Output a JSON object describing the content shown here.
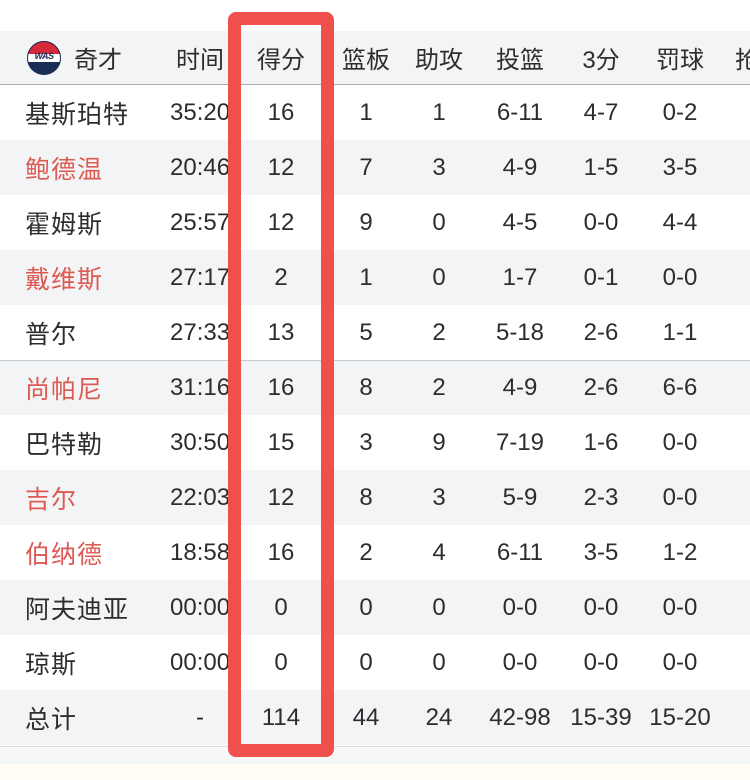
{
  "team": {
    "name": "奇才",
    "logo_text": "WAS",
    "logo_colors": {
      "top": "#d6293a",
      "middle": "#ffffff",
      "bottom": "#1b2f56"
    }
  },
  "header": {
    "time": "时间",
    "points": "得分",
    "rebounds": "篮板",
    "assists": "助攻",
    "field_goals": "投篮",
    "three_pointers": "3分",
    "free_throws": "罚球",
    "steals": "抢断"
  },
  "highlight": {
    "column": "得分",
    "color": "#f0504b"
  },
  "colors": {
    "red_player_name": "#dc5a52",
    "header_bg": "#f3f4f5",
    "zebra_row_bg": "#f3f4f6"
  },
  "rows": [
    {
      "name": "基斯珀特",
      "red": false,
      "time": "35:20",
      "pts": "16",
      "reb": "1",
      "ast": "1",
      "fg": "6-11",
      "tp": "4-7",
      "ft": "0-2",
      "stl": ""
    },
    {
      "name": "鲍德温",
      "red": true,
      "time": "20:46",
      "pts": "12",
      "reb": "7",
      "ast": "3",
      "fg": "4-9",
      "tp": "1-5",
      "ft": "3-5",
      "stl": ""
    },
    {
      "name": "霍姆斯",
      "red": false,
      "time": "25:57",
      "pts": "12",
      "reb": "9",
      "ast": "0",
      "fg": "4-5",
      "tp": "0-0",
      "ft": "4-4",
      "stl": ""
    },
    {
      "name": "戴维斯",
      "red": true,
      "time": "27:17",
      "pts": "2",
      "reb": "1",
      "ast": "0",
      "fg": "1-7",
      "tp": "0-1",
      "ft": "0-0",
      "stl": ""
    },
    {
      "name": "普尔",
      "red": false,
      "time": "27:33",
      "pts": "13",
      "reb": "5",
      "ast": "2",
      "fg": "5-18",
      "tp": "2-6",
      "ft": "1-1",
      "stl": ""
    },
    {
      "name": "尚帕尼",
      "red": true,
      "time": "31:16",
      "pts": "16",
      "reb": "8",
      "ast": "2",
      "fg": "4-9",
      "tp": "2-6",
      "ft": "6-6",
      "stl": ""
    },
    {
      "name": "巴特勒",
      "red": false,
      "time": "30:50",
      "pts": "15",
      "reb": "3",
      "ast": "9",
      "fg": "7-19",
      "tp": "1-6",
      "ft": "0-0",
      "stl": ""
    },
    {
      "name": "吉尔",
      "red": true,
      "time": "22:03",
      "pts": "12",
      "reb": "8",
      "ast": "3",
      "fg": "5-9",
      "tp": "2-3",
      "ft": "0-0",
      "stl": ""
    },
    {
      "name": "伯纳德",
      "red": true,
      "time": "18:58",
      "pts": "16",
      "reb": "2",
      "ast": "4",
      "fg": "6-11",
      "tp": "3-5",
      "ft": "1-2",
      "stl": ""
    },
    {
      "name": "阿夫迪亚",
      "red": false,
      "time": "00:00",
      "pts": "0",
      "reb": "0",
      "ast": "0",
      "fg": "0-0",
      "tp": "0-0",
      "ft": "0-0",
      "stl": ""
    },
    {
      "name": "琼斯",
      "red": false,
      "time": "00:00",
      "pts": "0",
      "reb": "0",
      "ast": "0",
      "fg": "0-0",
      "tp": "0-0",
      "ft": "0-0",
      "stl": ""
    }
  ],
  "total": {
    "name": "总计",
    "time": "-",
    "pts": "114",
    "reb": "44",
    "ast": "24",
    "fg": "42-98",
    "tp": "15-39",
    "ft": "15-20",
    "stl": ""
  }
}
